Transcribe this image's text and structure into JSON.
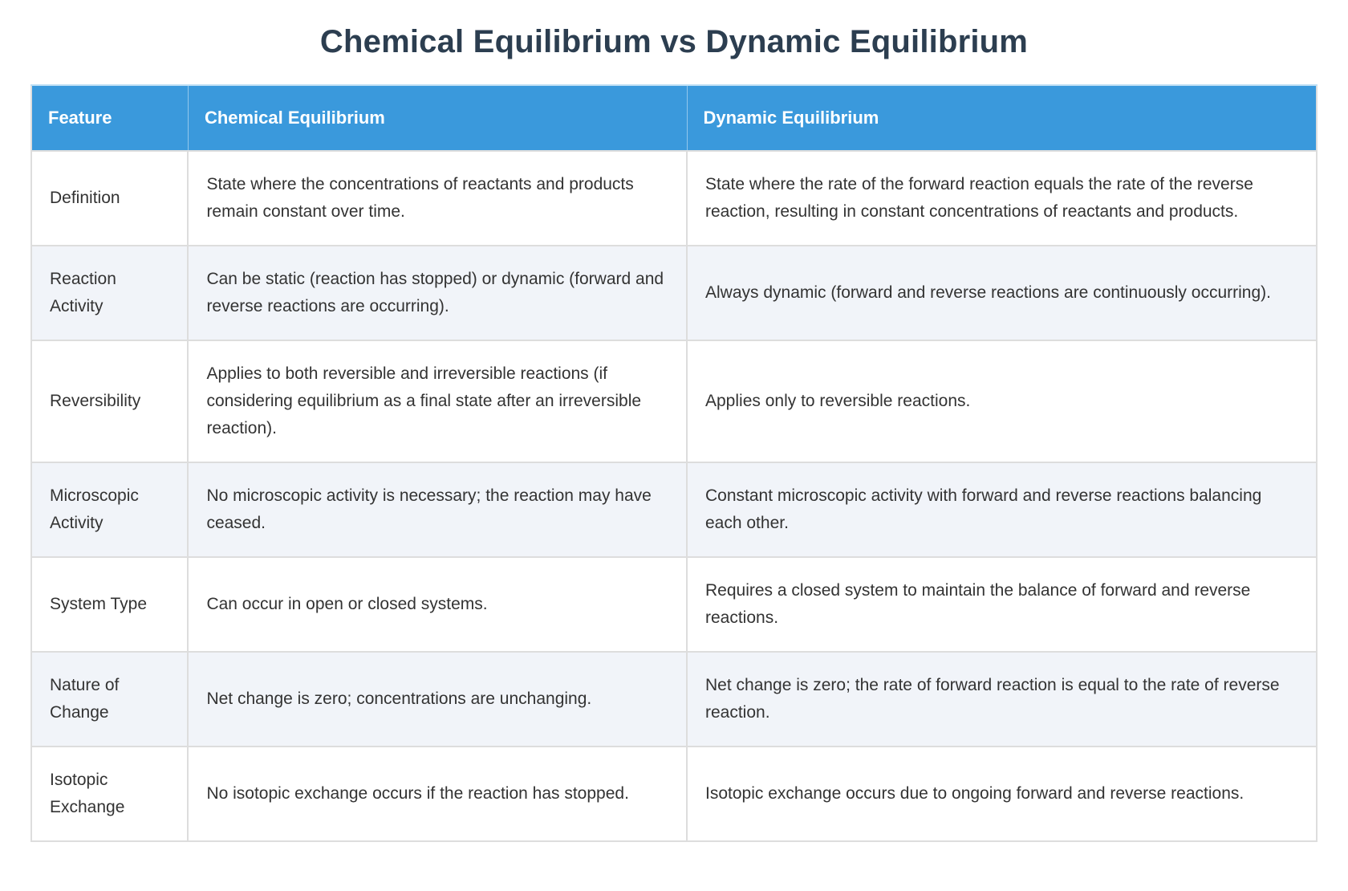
{
  "page": {
    "title": "Chemical Equilibrium vs Dynamic Equilibrium"
  },
  "colors": {
    "header_bg": "#3a99dc",
    "header_text": "#ffffff",
    "title_text": "#2c3e50",
    "body_text": "#333333",
    "stripe_bg": "#f1f4f9",
    "border": "#dddddd"
  },
  "table": {
    "columns": [
      "Feature",
      "Chemical Equilibrium",
      "Dynamic Equilibrium"
    ],
    "rows": [
      {
        "feature": "Definition",
        "chemical": "State where the concentrations of reactants and products remain constant over time.",
        "dynamic": "State where the rate of the forward reaction equals the rate of the reverse reaction, resulting in constant concentrations of reactants and products."
      },
      {
        "feature": "Reaction Activity",
        "chemical": "Can be static (reaction has stopped) or dynamic (forward and reverse reactions are occurring).",
        "dynamic": "Always dynamic (forward and reverse reactions are continuously occurring)."
      },
      {
        "feature": "Reversibility",
        "chemical": "Applies to both reversible and irreversible reactions (if considering equilibrium as a final state after an irreversible reaction).",
        "dynamic": "Applies only to reversible reactions."
      },
      {
        "feature": "Microscopic Activity",
        "chemical": "No microscopic activity is necessary; the reaction may have ceased.",
        "dynamic": "Constant microscopic activity with forward and reverse reactions balancing each other."
      },
      {
        "feature": "System Type",
        "chemical": "Can occur in open or closed systems.",
        "dynamic": "Requires a closed system to maintain the balance of forward and reverse reactions."
      },
      {
        "feature": "Nature of Change",
        "chemical": "Net change is zero; concentrations are unchanging.",
        "dynamic": "Net change is zero; the rate of forward reaction is equal to the rate of reverse reaction."
      },
      {
        "feature": "Isotopic Exchange",
        "chemical": "No isotopic exchange occurs if the reaction has stopped.",
        "dynamic": "Isotopic exchange occurs due to ongoing forward and reverse reactions."
      }
    ]
  }
}
